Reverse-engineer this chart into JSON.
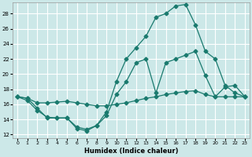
{
  "title": "",
  "xlabel": "Humidex (Indice chaleur)",
  "ylabel": "",
  "background_color": "#cce8e8",
  "grid_color": "#ffffff",
  "line_color": "#1a7a6e",
  "xlim": [
    -0.5,
    23.5
  ],
  "ylim": [
    11.5,
    29.5
  ],
  "xticks": [
    0,
    1,
    2,
    3,
    4,
    5,
    6,
    7,
    8,
    9,
    10,
    11,
    12,
    13,
    14,
    15,
    16,
    17,
    18,
    19,
    20,
    21,
    22,
    23
  ],
  "yticks": [
    12,
    14,
    16,
    18,
    20,
    22,
    24,
    26,
    28
  ],
  "line1_x": [
    0,
    1,
    2,
    3,
    4,
    5,
    6,
    7,
    8,
    9,
    10,
    11,
    12,
    13,
    14,
    15,
    16,
    17,
    18,
    19,
    20,
    21,
    22,
    23
  ],
  "line1_y": [
    17.0,
    16.5,
    15.2,
    14.3,
    14.2,
    14.2,
    12.8,
    12.5,
    13.2,
    14.5,
    17.3,
    19.0,
    21.5,
    22.0,
    17.5,
    21.5,
    22.0,
    22.5,
    23.0,
    19.8,
    17.0,
    18.3,
    18.5,
    17.0
  ],
  "line2_x": [
    0,
    1,
    2,
    3,
    4,
    5,
    6,
    7,
    8,
    9,
    10,
    11,
    12,
    13,
    14,
    15,
    16,
    17,
    18,
    19,
    20,
    21,
    22,
    23
  ],
  "line2_y": [
    17.0,
    16.8,
    15.5,
    14.2,
    14.2,
    14.2,
    13.0,
    12.7,
    13.2,
    15.0,
    19.0,
    22.0,
    23.5,
    25.0,
    27.5,
    28.0,
    29.0,
    29.2,
    26.5,
    23.0,
    22.0,
    18.5,
    17.5,
    17.0
  ],
  "line3_x": [
    0,
    1,
    2,
    3,
    4,
    5,
    6,
    7,
    8,
    9,
    10,
    11,
    12,
    13,
    14,
    15,
    16,
    17,
    18,
    19,
    20,
    21,
    22,
    23
  ],
  "line3_y": [
    17.0,
    16.8,
    16.2,
    16.2,
    16.3,
    16.4,
    16.2,
    16.0,
    15.8,
    15.8,
    16.0,
    16.2,
    16.5,
    16.8,
    17.0,
    17.3,
    17.5,
    17.7,
    17.8,
    17.3,
    17.0,
    17.0,
    17.0,
    17.0
  ]
}
